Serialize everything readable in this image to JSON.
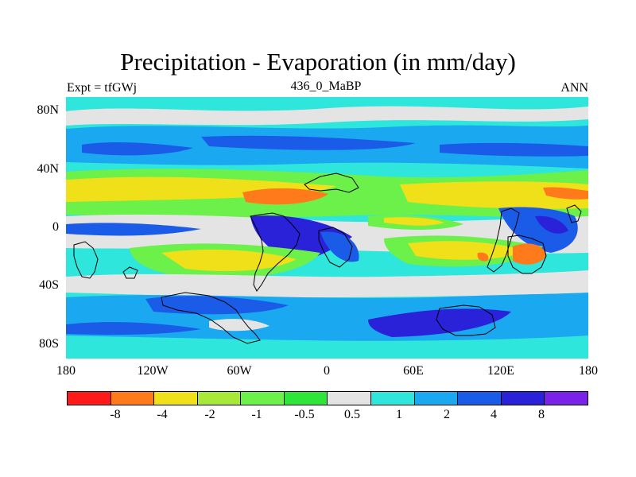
{
  "title": "Precipitation - Evaporation (in mm/day)",
  "left_label": "Expt = tfGWj",
  "center_label": "436_0_MaBP",
  "right_label": "ANN",
  "map": {
    "y_ticks": [
      "80N",
      "40N",
      "0",
      "40S",
      "80S"
    ],
    "x_ticks": [
      "180",
      "120W",
      "60W",
      "0",
      "60E",
      "120E",
      "180"
    ],
    "lat_range": [
      -90,
      90
    ],
    "lon_range": [
      -180,
      180
    ]
  },
  "colorbar": {
    "colors": [
      "#ff1a1a",
      "#ff7a1a",
      "#f0e01a",
      "#a8e838",
      "#6cf04a",
      "#2ee63a",
      "#e4e4e4",
      "#2ee6dc",
      "#1aa8f0",
      "#1a5ce8",
      "#2a22d8",
      "#7a22e8"
    ],
    "labels": [
      "-8",
      "-4",
      "-2",
      "-1",
      "-0.5",
      "0.5",
      "1",
      "2",
      "4",
      "8"
    ]
  },
  "field_colors": {
    "red": "#ff1a1a",
    "orange": "#ff7a1a",
    "yellow": "#f0e01a",
    "light_green": "#a8e838",
    "green": "#6cf04a",
    "bright_green": "#2ee63a",
    "gray": "#e4e4e4",
    "cyan": "#2ee6dc",
    "light_blue": "#1aa8f0",
    "blue": "#1a5ce8",
    "dark_blue": "#2a22d8",
    "purple": "#7a22e8"
  }
}
